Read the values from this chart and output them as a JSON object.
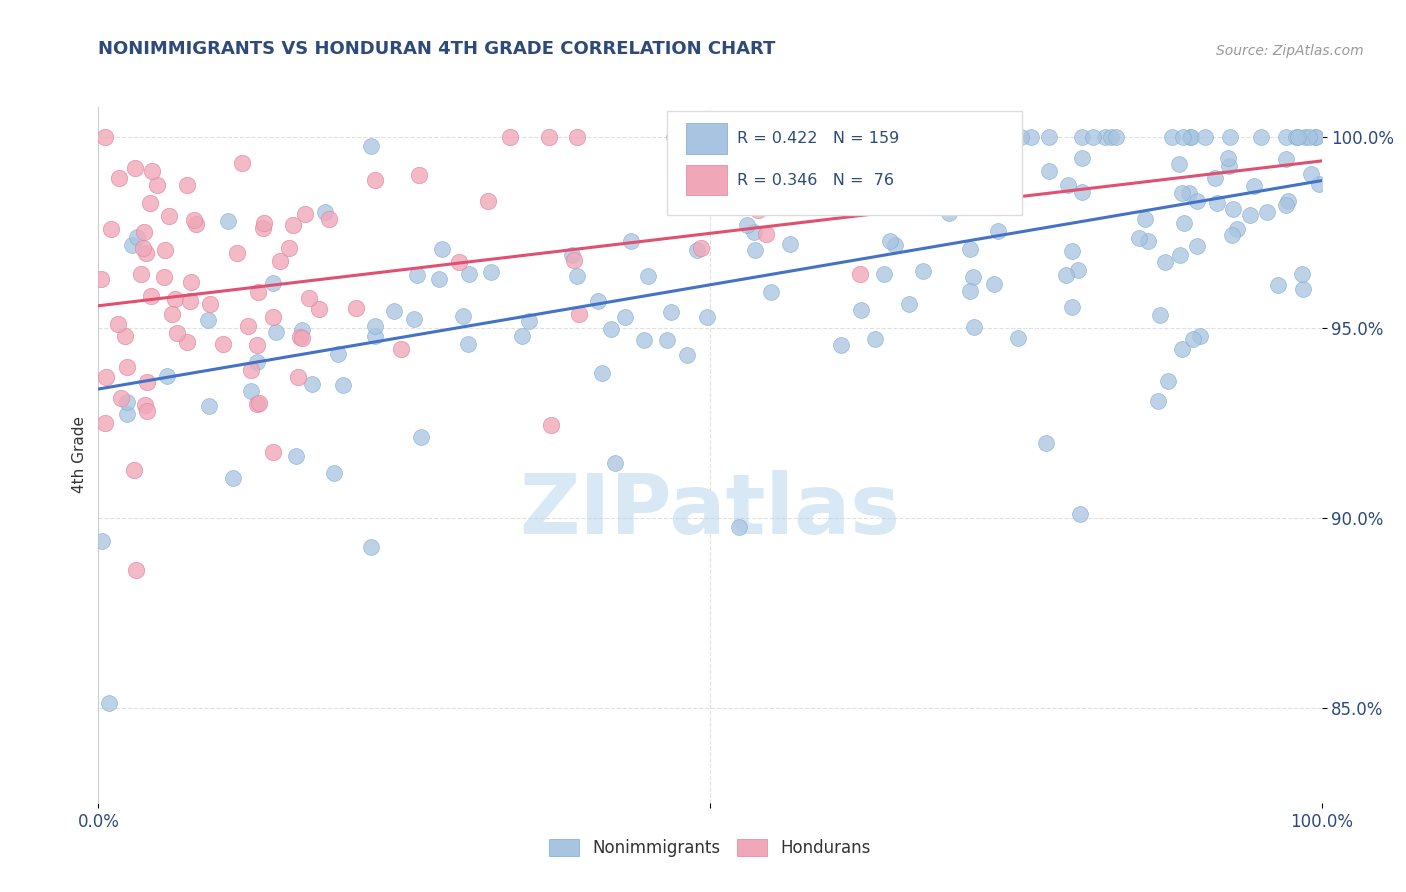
{
  "title": "NONIMMIGRANTS VS HONDURAN 4TH GRADE CORRELATION CHART",
  "source": "Source: ZipAtlas.com",
  "ylabel": "4th Grade",
  "yticks": [
    0.85,
    0.9,
    0.95,
    1.0
  ],
  "ytick_labels": [
    "85.0%",
    "90.0%",
    "95.0%",
    "100.0%"
  ],
  "xlim": [
    0.0,
    1.0
  ],
  "ylim": [
    0.825,
    1.008
  ],
  "blue_R": 0.422,
  "blue_N": 159,
  "pink_R": 0.346,
  "pink_N": 76,
  "blue_color": "#a8c4e0",
  "pink_color": "#f0a8b8",
  "blue_edge_color": "#7aa8d0",
  "pink_edge_color": "#e080a0",
  "blue_line_color": "#4472c4",
  "pink_line_color": "#e05070",
  "legend_label_blue": "Nonimmigrants",
  "legend_label_pink": "Hondurans",
  "title_color": "#2e4a7a",
  "axis_color": "#2e4a7a",
  "text_color": "#333333",
  "source_color": "#999999",
  "watermark": "ZIPatlas",
  "watermark_color": "#d8e8f5",
  "background_color": "#ffffff",
  "grid_color": "#cccccc",
  "seed_blue": 42,
  "seed_pink": 7
}
